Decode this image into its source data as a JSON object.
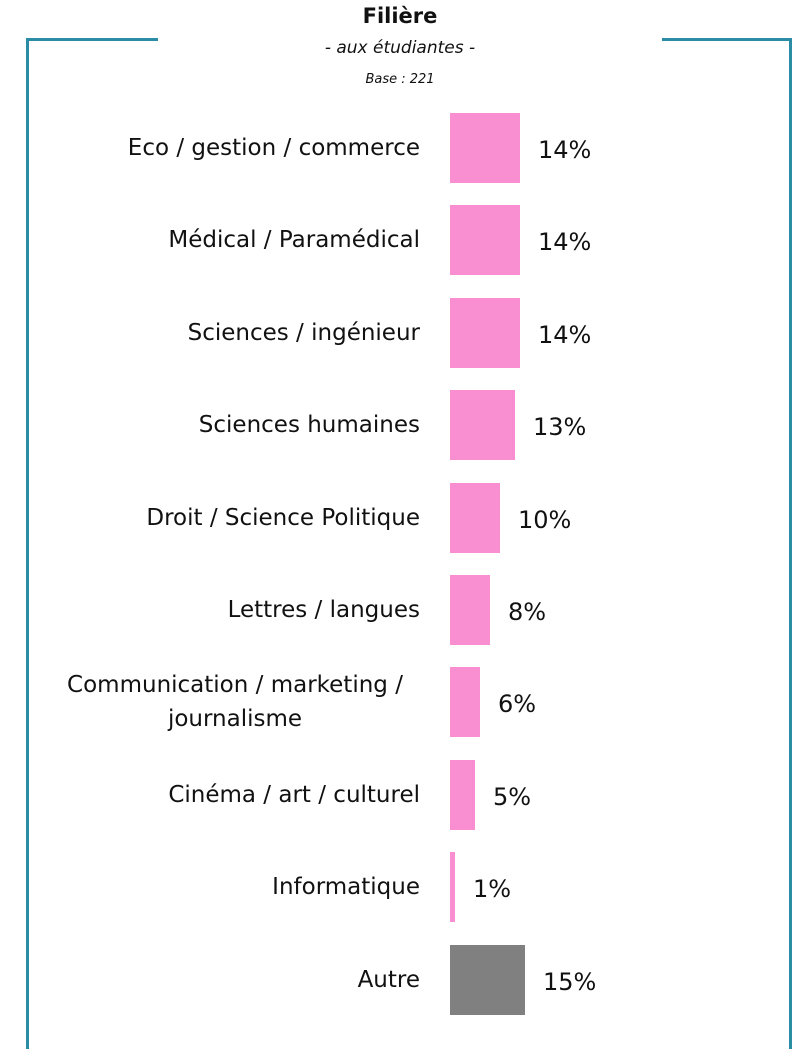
{
  "chart_data": {
    "type": "barh",
    "title": "Filière",
    "subtitle": "- aux étudiantes -",
    "base": "Base : 221",
    "categories": [
      "Eco / gestion / commerce",
      "Médical / Paramédical",
      "Sciences / ingénieur",
      "Sciences humaines",
      "Droit / Science Politique",
      "Lettres / langues",
      "Communication / marketing / journalisme",
      "Cinéma / art / culturel",
      "Informatique",
      "Autre"
    ],
    "values": [
      14,
      14,
      14,
      13,
      10,
      8,
      6,
      5,
      1,
      15
    ],
    "value_labels": [
      "14%",
      "14%",
      "14%",
      "13%",
      "10%",
      "8%",
      "6%",
      "5%",
      "1%",
      "15%"
    ],
    "colors": [
      "#f98fd0",
      "#f98fd0",
      "#f98fd0",
      "#f98fd0",
      "#f98fd0",
      "#f98fd0",
      "#f98fd0",
      "#f98fd0",
      "#f98fd0",
      "#808080"
    ],
    "xlim": [
      0,
      70
    ]
  }
}
